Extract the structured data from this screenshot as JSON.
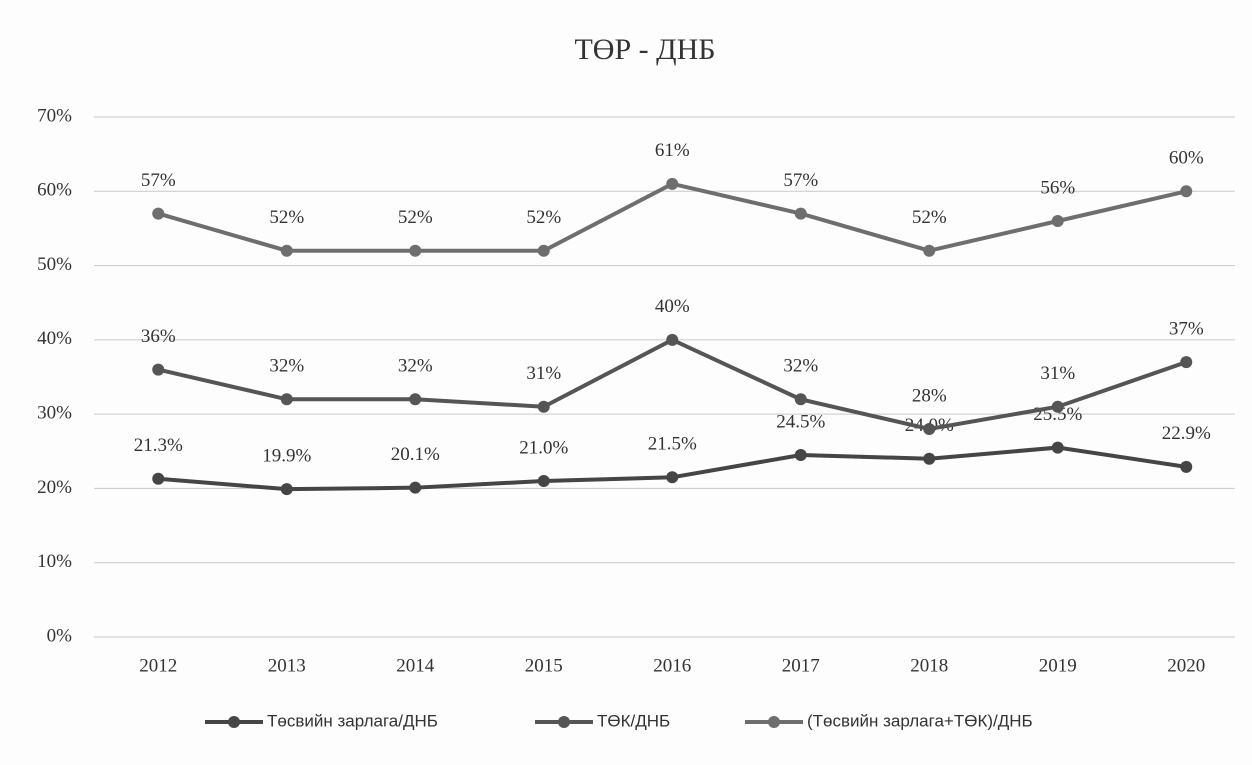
{
  "chart_data": {
    "type": "line",
    "title": "ТӨР - ДНБ",
    "categories": [
      "2012",
      "2013",
      "2014",
      "2015",
      "2016",
      "2017",
      "2018",
      "2019",
      "2020"
    ],
    "series": [
      {
        "name": "Төсвийн зарлага/ДНБ",
        "color": "#454545",
        "values": [
          21.3,
          19.9,
          20.1,
          21.0,
          21.5,
          24.5,
          24.0,
          25.5,
          22.9
        ],
        "value_labels": [
          "21.3%",
          "19.9%",
          "20.1%",
          "21.0%",
          "21.5%",
          "24.5%",
          "24.0%",
          "25.5%",
          "22.9%"
        ]
      },
      {
        "name": "ТӨК/ДНБ",
        "color": "#555555",
        "values": [
          36,
          32,
          32,
          31,
          40,
          32,
          28,
          31,
          37
        ],
        "value_labels": [
          "36%",
          "32%",
          "32%",
          "31%",
          "40%",
          "32%",
          "28%",
          "31%",
          "37%"
        ]
      },
      {
        "name": "(Төсвийн зарлага+ТӨК)/ДНБ",
        "color": "#6e6e6e",
        "values": [
          57,
          52,
          52,
          52,
          61,
          57,
          52,
          56,
          60
        ],
        "value_labels": [
          "57%",
          "52%",
          "52%",
          "52%",
          "61%",
          "57%",
          "52%",
          "56%",
          "60%"
        ]
      }
    ],
    "ylim": [
      0,
      70
    ],
    "yticks": [
      {
        "value": 0,
        "label": "0%"
      },
      {
        "value": 10,
        "label": "10%"
      },
      {
        "value": 20,
        "label": "20%"
      },
      {
        "value": 30,
        "label": "30%"
      },
      {
        "value": 40,
        "label": "40%"
      },
      {
        "value": 50,
        "label": "50%"
      },
      {
        "value": 60,
        "label": "60%"
      },
      {
        "value": 70,
        "label": "70%"
      }
    ],
    "grid": true,
    "legend": "bottom"
  }
}
